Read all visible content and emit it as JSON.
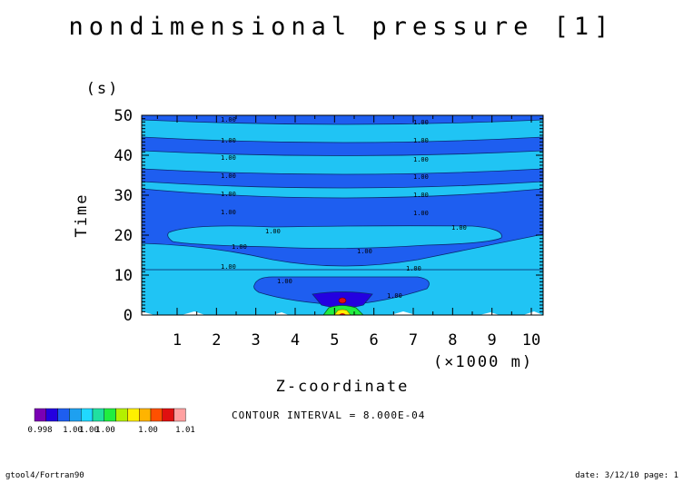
{
  "chart_data": {
    "type": "heatmap",
    "title": "nondimensional pressure [1]",
    "xlabel": "Z-coordinate",
    "x_unit": "(×1000 m)",
    "ylabel": "Time",
    "y_unit": "(s)",
    "xlim": [
      0.1,
      10.3
    ],
    "ylim": [
      0,
      50
    ],
    "x_ticks": [
      "1",
      "2",
      "3",
      "4",
      "5",
      "6",
      "7",
      "8",
      "9",
      "10"
    ],
    "y_ticks": [
      "0",
      "10",
      "20",
      "30",
      "40",
      "50"
    ],
    "contour_interval": "CONTOUR INTERVAL = 8.000E-04",
    "contour_label": "1.00",
    "colorbar": {
      "colors": [
        "#7a00b4",
        "#2400e0",
        "#1e5ef0",
        "#1ea0f0",
        "#20d8ff",
        "#20e0a0",
        "#20ee40",
        "#b4f000",
        "#fff000",
        "#ffb400",
        "#ff5000",
        "#e01010",
        "#ffa0a0"
      ],
      "labels": [
        "0.998",
        "1.00",
        "1.00",
        "1.00",
        "1.00",
        "1.01"
      ]
    },
    "colors": {
      "band_dark": "#1e5ef0",
      "band_light": "#20c4f4"
    }
  },
  "footer": {
    "left": "gtool4/Fortran90",
    "right": "date: 3/12/10 page: 1"
  }
}
